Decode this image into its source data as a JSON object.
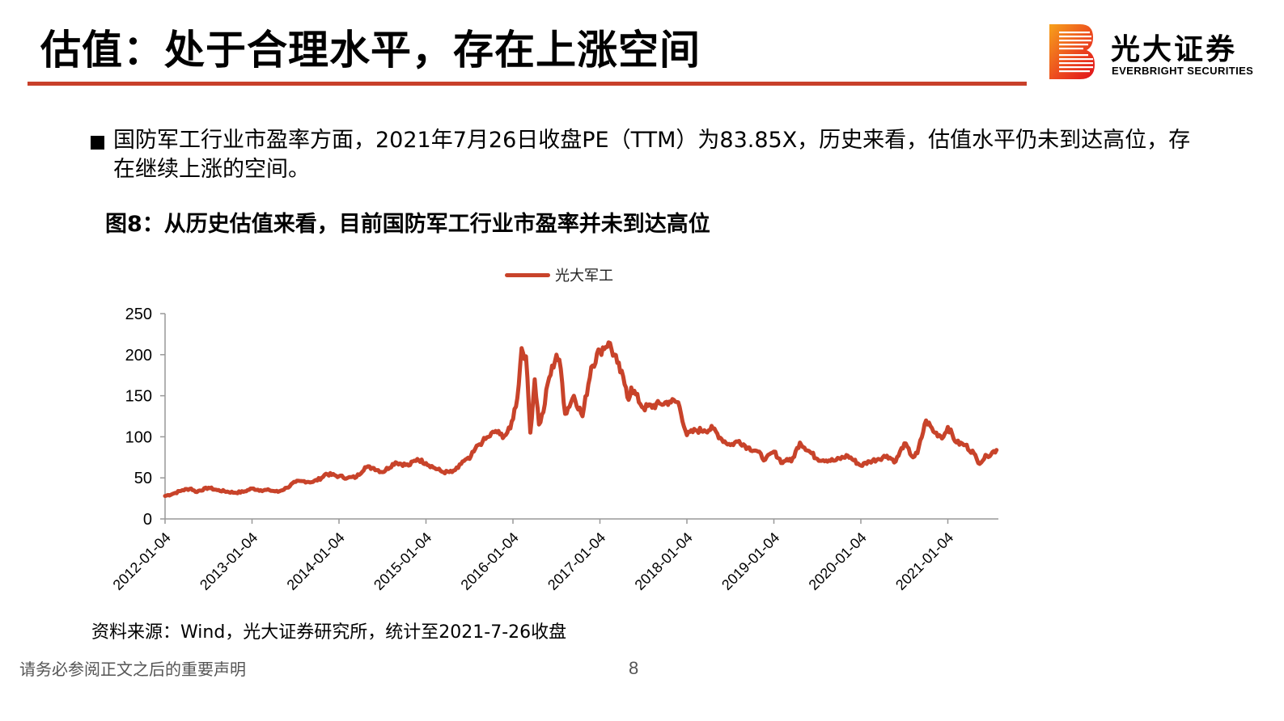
{
  "header": {
    "title": "估值：处于合理水平，存在上涨空间",
    "accent_color": "#c8402a"
  },
  "logo": {
    "name_cn": "光大证券",
    "name_en": "EVERBRIGHT SECURITIES",
    "icon": "everbright-b-logo-icon"
  },
  "body": {
    "bullet_icon": "black-square-bullet-icon",
    "bullet_text": "国防军工行业市盈率方面，2021年7月26日收盘PE（TTM）为83.85X，历史来看，估值水平仍未到达高位，存在继续上涨的空间。",
    "figure_title": "图8：从历史估值来看，目前国防军工行业市盈率并未到达高位"
  },
  "chart_data": {
    "type": "line",
    "title": "图8：从历史估值来看，目前国防军工行业市盈率并未到达高位",
    "xlabel": "",
    "ylabel": "",
    "ylim": [
      0,
      250
    ],
    "yticks": [
      "0",
      "50",
      "100",
      "150",
      "200",
      "250"
    ],
    "categories": [
      "2012-01-04",
      "2013-01-04",
      "2014-01-04",
      "2015-01-04",
      "2016-01-04",
      "2017-01-04",
      "2018-01-04",
      "2019-01-04",
      "2020-01-04",
      "2021-01-04"
    ],
    "grid": false,
    "legend_position": "top",
    "series_color": "#c8432a",
    "series": [
      {
        "name": "光大军工",
        "x": [
          2012.0,
          2012.1,
          2012.2,
          2012.3,
          2012.35,
          2012.5,
          2012.6,
          2012.8,
          2012.9,
          2013.0,
          2013.1,
          2013.2,
          2013.3,
          2013.4,
          2013.5,
          2013.6,
          2013.7,
          2013.8,
          2013.85,
          2014.0,
          2014.1,
          2014.2,
          2014.3,
          2014.4,
          2014.5,
          2014.65,
          2014.8,
          2014.9,
          2015.0,
          2015.1,
          2015.2,
          2015.3,
          2015.37,
          2015.42,
          2015.5,
          2015.55,
          2015.6,
          2015.65,
          2015.72,
          2015.8,
          2015.85,
          2015.9,
          2015.97,
          2016.05,
          2016.1,
          2016.15,
          2016.2,
          2016.25,
          2016.3,
          2016.35,
          2016.4,
          2016.5,
          2016.55,
          2016.6,
          2016.7,
          2016.8,
          2016.9,
          2017.0,
          2017.1,
          2017.2,
          2017.3,
          2017.33,
          2017.36,
          2017.5,
          2017.7,
          2017.8,
          2017.9,
          2018.0,
          2018.1,
          2018.2,
          2018.3,
          2018.4,
          2018.5,
          2018.6,
          2018.7,
          2018.8,
          2018.9,
          2019.0,
          2019.1,
          2019.15,
          2019.2,
          2019.3,
          2019.5,
          2019.7,
          2019.85,
          2020.0,
          2020.1,
          2020.2,
          2020.3,
          2020.4,
          2020.5,
          2020.6,
          2020.65,
          2020.75,
          2020.85,
          2020.95,
          2021.0,
          2021.1,
          2021.2,
          2021.3,
          2021.35,
          2021.45,
          2021.56
        ],
        "values": [
          28,
          31,
          35,
          37,
          33,
          38,
          35,
          32,
          33,
          37,
          35,
          35,
          33,
          38,
          45,
          46,
          45,
          50,
          55,
          52,
          50,
          51,
          63,
          62,
          57,
          69,
          65,
          73,
          68,
          62,
          57,
          57,
          62,
          70,
          73,
          82,
          90,
          94,
          100,
          107,
          103,
          101,
          110,
          147,
          208,
          198,
          105,
          170,
          115,
          130,
          165,
          200,
          183,
          128,
          150,
          125,
          185,
          205,
          215,
          190,
          160,
          145,
          160,
          135,
          140,
          143,
          142,
          102,
          108,
          108,
          110,
          97,
          90,
          95,
          87,
          83,
          72,
          82,
          68,
          73,
          70,
          93,
          73,
          71,
          77,
          65,
          70,
          73,
          77,
          70,
          92,
          75,
          80,
          120,
          105,
          100,
          112,
          93,
          90,
          80,
          68,
          77,
          84
        ]
      }
    ],
    "annotations": [
      "2021年7月26日收盘PE（TTM）为83.85X"
    ]
  },
  "footer": {
    "source": "资料来源：Wind，光大证券研究所，统计至2021-7-26收盘",
    "disclaimer": "请务必参阅正文之后的重要声明",
    "page_number": "8"
  }
}
